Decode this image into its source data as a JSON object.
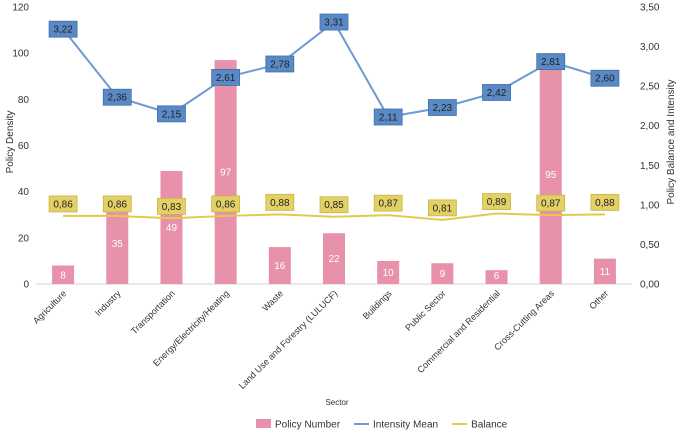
{
  "chart_data": {
    "type": "bar",
    "xlabel": "Sector",
    "ylabel_left": "Policy Density",
    "ylabel_right": "Policy Balance and Intensity",
    "categories": [
      "Agriculture",
      "Industry",
      "Transportation",
      "Energy/Electricity/Heating",
      "Waste",
      "Land Use and Forestry (LULUCF)",
      "Buildings",
      "Public Sector",
      "Commercial and Residential",
      "Cross-Cutting Areas",
      "Other"
    ],
    "ylim_left": [
      0,
      120
    ],
    "yticks_left": [
      "0",
      "20",
      "40",
      "60",
      "80",
      "100",
      "120"
    ],
    "ylim_right": [
      0,
      3.5
    ],
    "yticks_right": [
      "0,00",
      "0,50",
      "1,00",
      "1,50",
      "2,00",
      "2,50",
      "3,00",
      "3,50"
    ],
    "series": [
      {
        "name": "Policy Number",
        "type": "bar",
        "axis": "left",
        "color": "#e891aa",
        "values": [
          8,
          35,
          49,
          97,
          16,
          22,
          10,
          9,
          6,
          95,
          11
        ],
        "labels": [
          "8",
          "35",
          "49",
          "97",
          "16",
          "22",
          "10",
          "9",
          "6",
          "95",
          "11"
        ]
      },
      {
        "name": "Intensity Mean",
        "type": "line",
        "axis": "right",
        "color": "#6b9bd1",
        "label_bg": "#5a8ac6",
        "values": [
          3.22,
          2.36,
          2.15,
          2.61,
          2.78,
          3.31,
          2.11,
          2.23,
          2.42,
          2.81,
          2.6
        ],
        "labels": [
          "3,22",
          "2,36",
          "2,15",
          "2,61",
          "2,78",
          "3,31",
          "2,11",
          "2,23",
          "2,42",
          "2,81",
          "2,60"
        ]
      },
      {
        "name": "Balance",
        "type": "line",
        "axis": "right",
        "color": "#e0cb52",
        "label_bg": "#e3d066",
        "values": [
          0.86,
          0.86,
          0.83,
          0.86,
          0.88,
          0.85,
          0.87,
          0.81,
          0.89,
          0.87,
          0.88
        ],
        "labels": [
          "0,86",
          "0,86",
          "0,83",
          "0,86",
          "0,88",
          "0,85",
          "0,87",
          "0,81",
          "0,89",
          "0,87",
          "0,88"
        ]
      }
    ],
    "legend_position": "bottom",
    "grid": false
  }
}
